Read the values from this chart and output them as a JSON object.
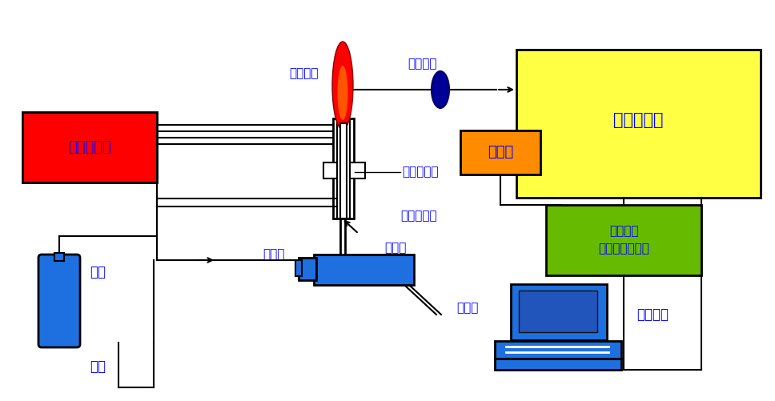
{
  "bg_color": "#ffffff",
  "blue": "#0000FF",
  "red_box": "#FF0000",
  "yellow_box": "#FFFF44",
  "orange_box": "#FF8C00",
  "green_box": "#66BB00",
  "comp_blue": "#1E6FE0",
  "dark_blue": "#0000CC",
  "text_color": "#0000FF",
  "labels": {
    "plasma_torch": "等离子炬",
    "plasma_tube": "等离子炬管",
    "hf_generator": "高频发生器",
    "optical_transfer": "光学传递",
    "spectrometer": "光谱仪系统",
    "detector": "检测器",
    "sample_spray": "样品喷射管",
    "nebulizer": "雾化器",
    "spray_chamber": "雾化室",
    "waste_port": "废液口",
    "argon": "氩气",
    "sample": "样品",
    "microprocessor": "微处理器\n和电子控制系统",
    "data_system": "数据系统"
  }
}
